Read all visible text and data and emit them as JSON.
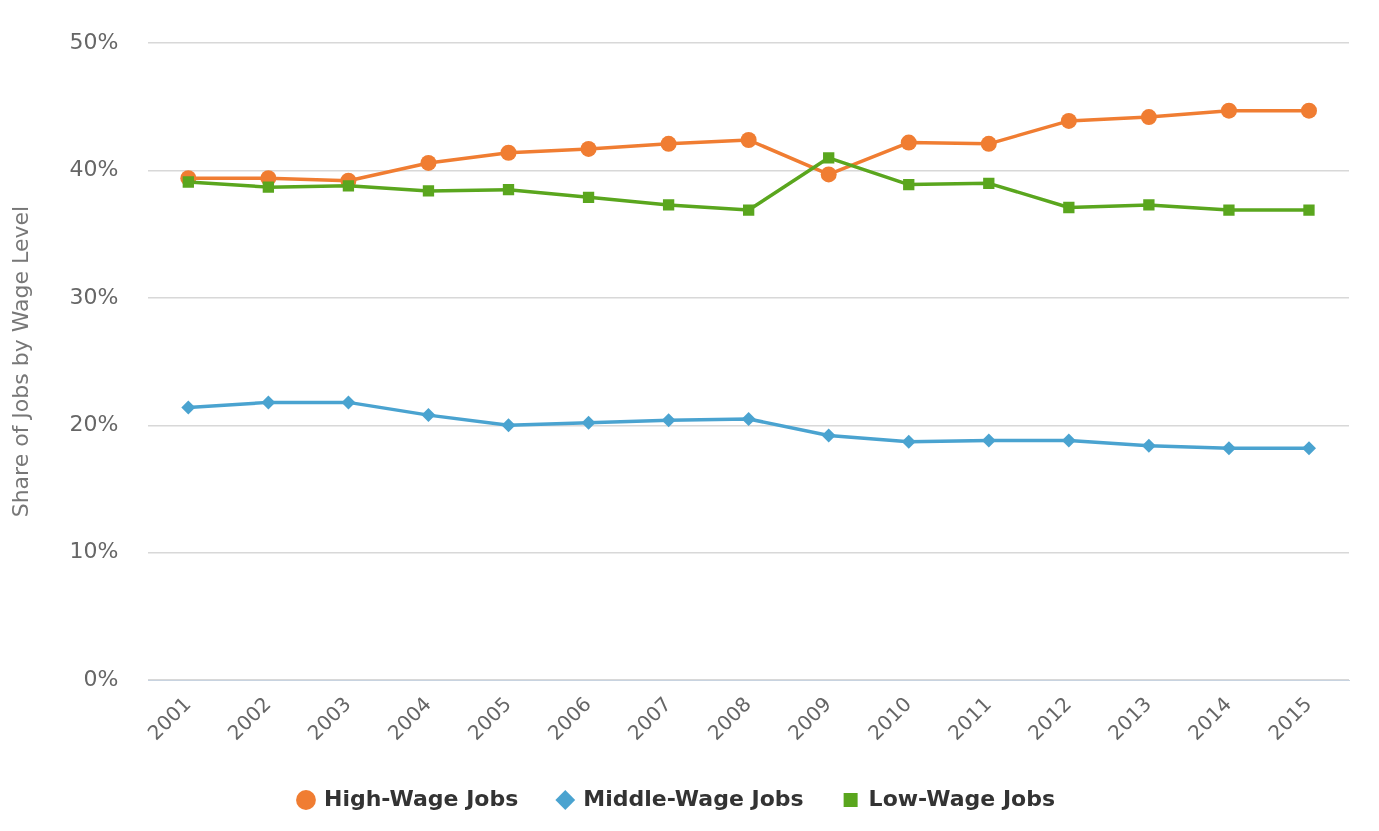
{
  "chart_data": {
    "type": "line",
    "ylabel": "Share of Jobs by Wage Level",
    "categories": [
      "2001",
      "2002",
      "2003",
      "2004",
      "2005",
      "2006",
      "2007",
      "2008",
      "2009",
      "2010",
      "2011",
      "2012",
      "2013",
      "2014",
      "2015"
    ],
    "series": [
      {
        "name": "High-Wage Jobs",
        "color": "#f07d32",
        "marker": "circle",
        "values": [
          39.4,
          39.4,
          39.2,
          40.6,
          41.4,
          41.7,
          42.1,
          42.4,
          39.7,
          42.2,
          42.1,
          43.9,
          44.2,
          44.7,
          44.7
        ]
      },
      {
        "name": "Middle-Wage Jobs",
        "color": "#4aa3d0",
        "marker": "diamond",
        "values": [
          21.4,
          21.8,
          21.8,
          20.8,
          20.0,
          20.2,
          20.4,
          20.5,
          19.2,
          18.7,
          18.8,
          18.8,
          18.4,
          18.2,
          18.2
        ]
      },
      {
        "name": "Low-Wage Jobs",
        "color": "#5aa61e",
        "marker": "square",
        "values": [
          39.1,
          38.7,
          38.8,
          38.4,
          38.5,
          37.9,
          37.3,
          36.9,
          41.0,
          38.9,
          39.0,
          37.1,
          37.3,
          36.9,
          36.9
        ]
      }
    ],
    "ylim": [
      0,
      50
    ],
    "yticks": [
      {
        "value": 0,
        "label": "0%"
      },
      {
        "value": 10,
        "label": "10%"
      },
      {
        "value": 20,
        "label": "20%"
      },
      {
        "value": 30,
        "label": "30%"
      },
      {
        "value": 40,
        "label": "40%"
      },
      {
        "value": 50,
        "label": "50%"
      }
    ],
    "grid": "y",
    "legend": "bottom",
    "line_style": "solid"
  }
}
